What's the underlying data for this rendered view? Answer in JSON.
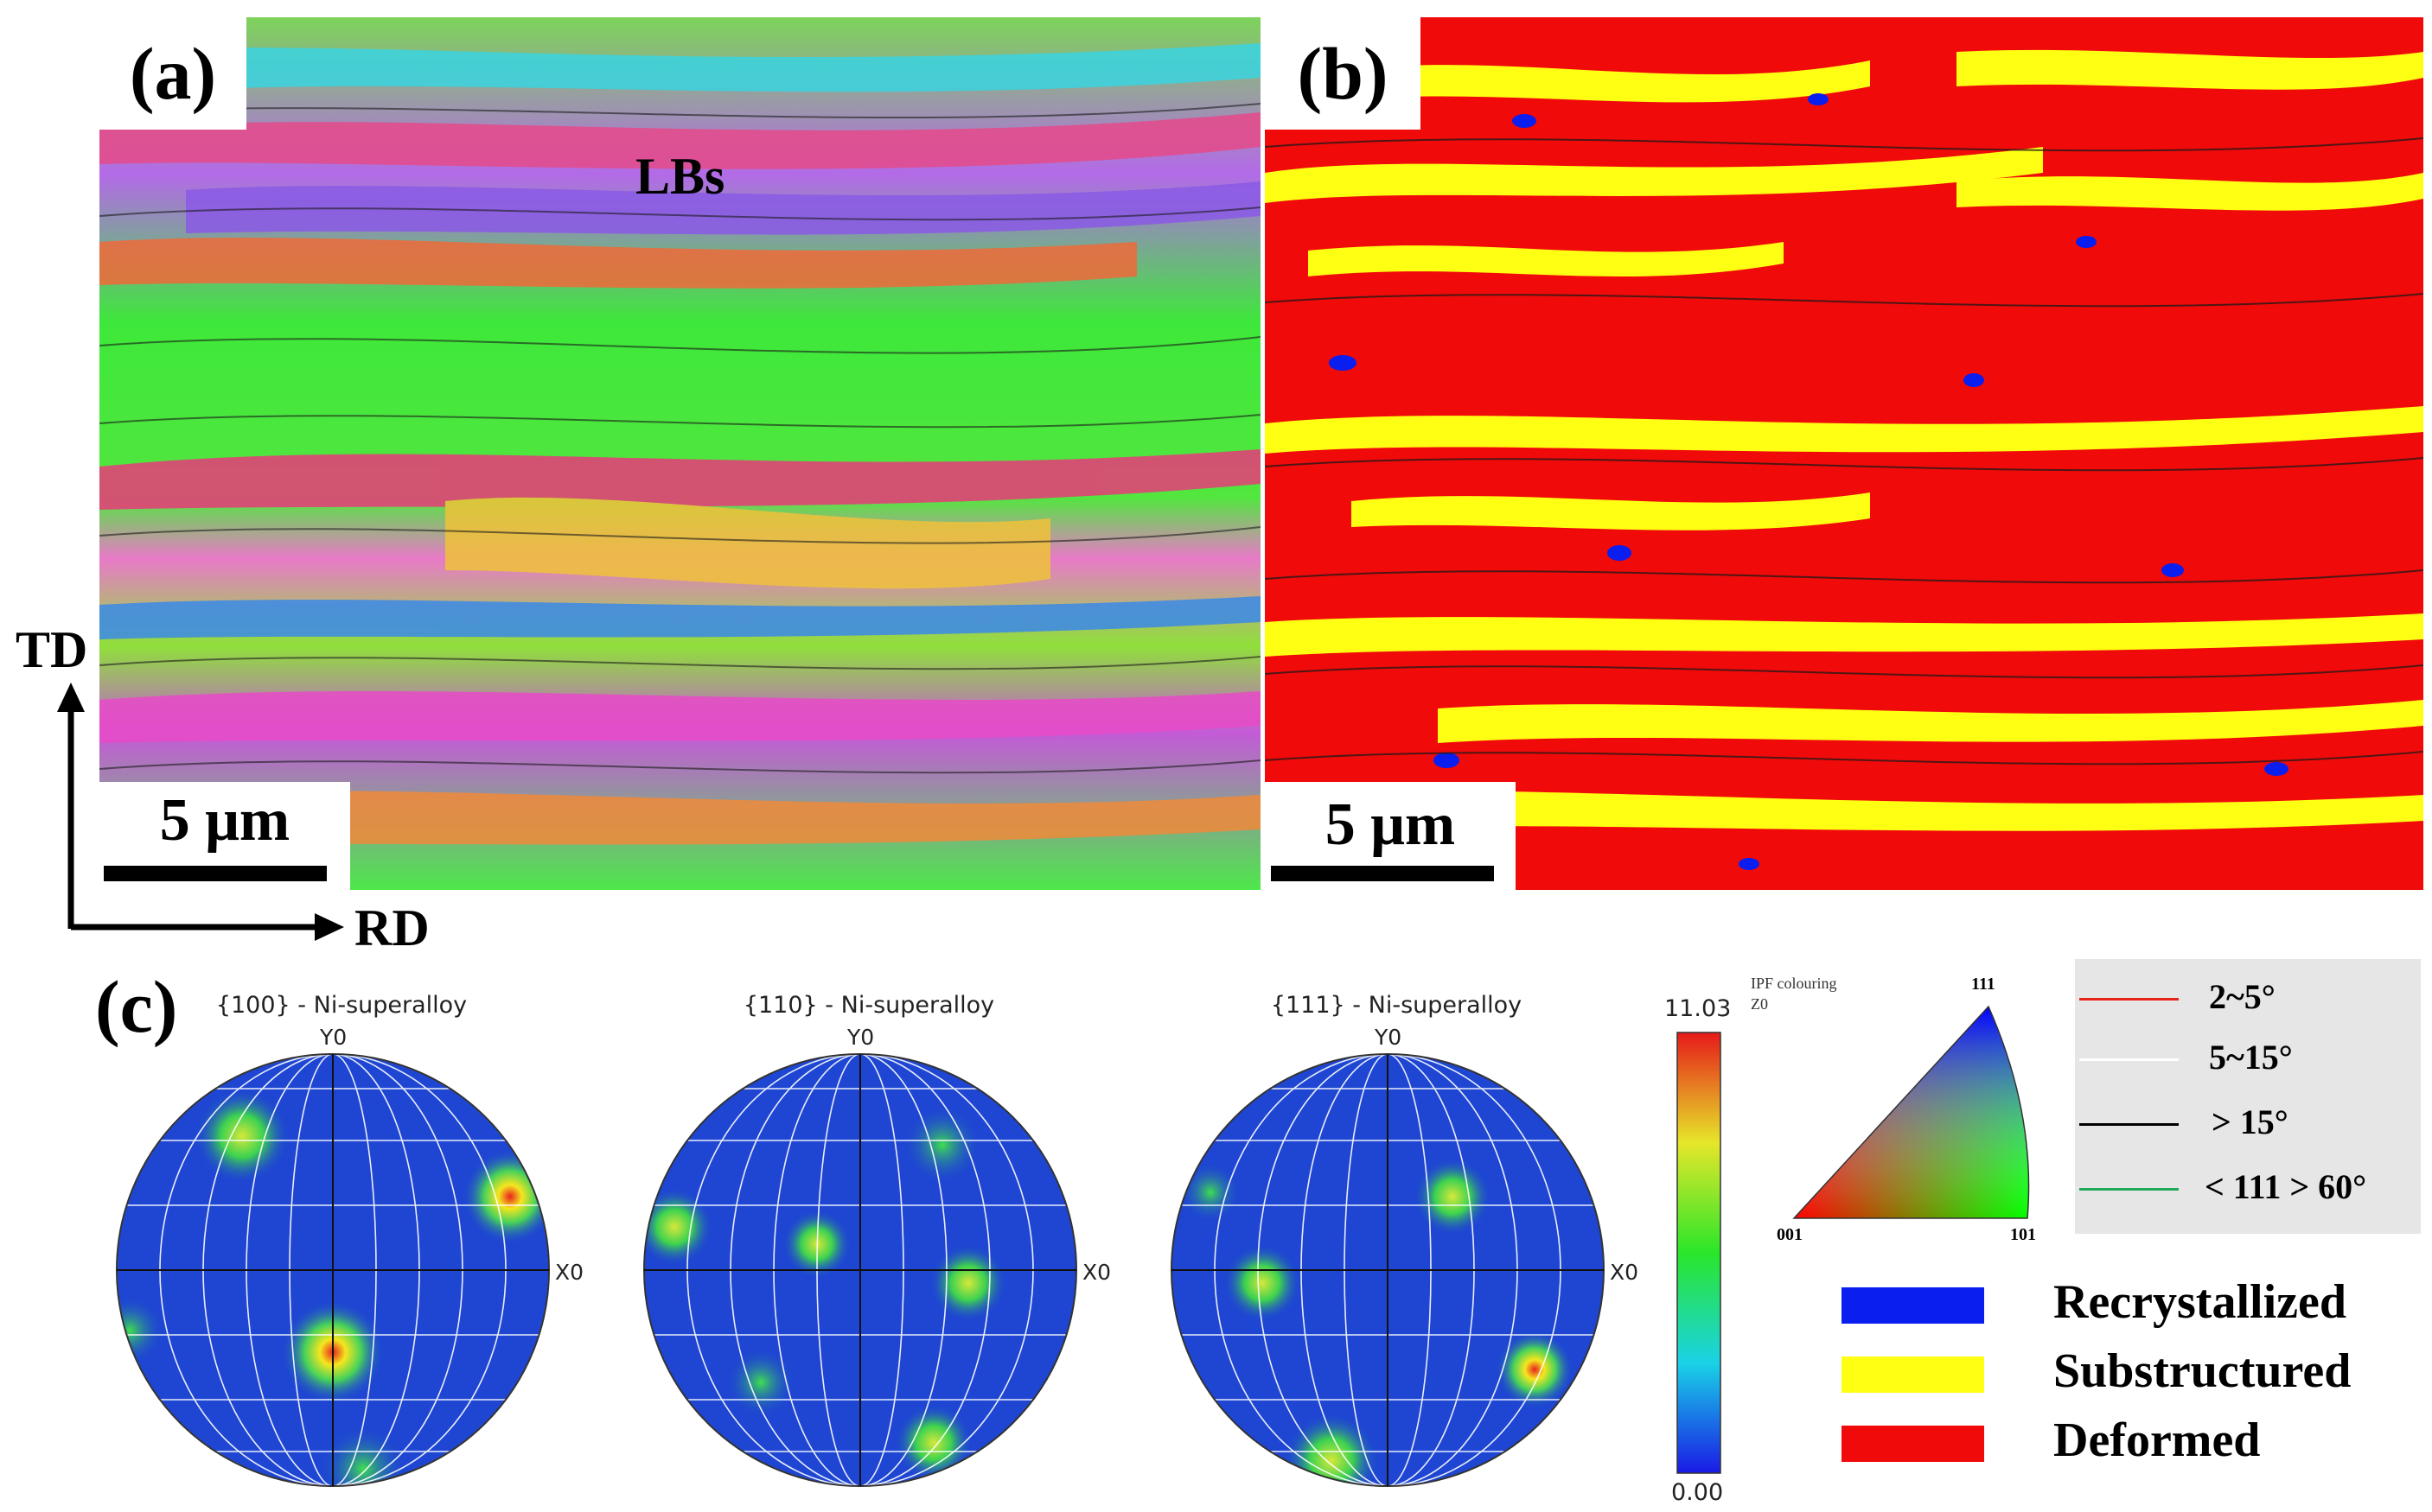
{
  "panels": {
    "a": {
      "label": "(a)",
      "annotation": "LBs",
      "scale": "5 μm"
    },
    "b": {
      "label": "(b)",
      "scale": "5 μm"
    },
    "c": {
      "label": "(c)"
    }
  },
  "axes": {
    "td": "TD",
    "rd": "RD"
  },
  "pole_figures": [
    {
      "title": "{100} - Ni-superalloy",
      "y_label": "Y0",
      "x_label": "X0"
    },
    {
      "title": "{110} - Ni-superalloy",
      "y_label": "Y0",
      "x_label": "X0"
    },
    {
      "title": "{111} - Ni-superalloy",
      "y_label": "Y0",
      "x_label": "X0"
    }
  ],
  "colorbar": {
    "max": "11.03",
    "min": "0.00"
  },
  "ipf_key": {
    "title_line1": "IPF colouring",
    "title_line2": "Z0",
    "top": "111",
    "left": "001",
    "right": "101"
  },
  "boundary_legend": [
    {
      "label": "2~5°",
      "color": "#e8241a"
    },
    {
      "label": "5~15°",
      "color": "#ffffff"
    },
    {
      "label": "> 15°",
      "color": "#000000"
    },
    {
      "label": "< 111 > 60°",
      "color": "#1fa85a"
    }
  ],
  "grain_legend": [
    {
      "label": "Recrystallized",
      "color": "#0a1ef0"
    },
    {
      "label": "Substructured",
      "color": "#ffff14"
    },
    {
      "label": "Deformed",
      "color": "#f00a0a"
    }
  ]
}
